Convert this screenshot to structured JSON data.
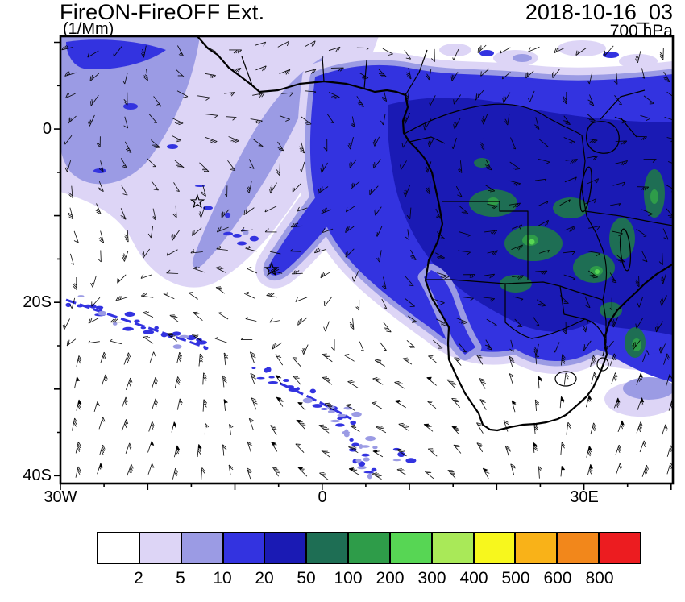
{
  "header": {
    "title": "FireON-FireOFF Ext.",
    "units": "(1/Mm)",
    "datetime": "2018-10-16_03",
    "level": "700 hPa"
  },
  "axes": {
    "y_ticks": [
      "0",
      "20S",
      "40S"
    ],
    "x_ticks": [
      "30W",
      "0",
      "30E"
    ]
  },
  "colorbar": {
    "labels": [
      "2",
      "5",
      "10",
      "20",
      "50",
      "100",
      "200",
      "300",
      "400",
      "500",
      "600",
      "800"
    ],
    "colors": [
      "#FFFFFF",
      "#DDD5F6",
      "#9B9BE4",
      "#3333E0",
      "#1A1AB4",
      "#1E6E54",
      "#2E9C49",
      "#57D654",
      "#A9E958",
      "#F7F71D",
      "#F9B218",
      "#F2871B",
      "#EC1C20"
    ]
  },
  "chart_data": {
    "type": "heatmap",
    "title": "FireON-FireOFF Ext.",
    "field": "Aerosol extinction coefficient difference (FireON minus FireOFF)",
    "units": "1/Mm",
    "pressure_level_hPa": 700,
    "datetime": "2018-10-16_03",
    "extent": {
      "lon": [
        -30,
        40.2
      ],
      "lat": [
        10.7,
        -40.9
      ]
    },
    "contour_levels": [
      2,
      5,
      10,
      20,
      50,
      100,
      200,
      300,
      400,
      500,
      600,
      800
    ],
    "legend_position": "bottom",
    "grid": false,
    "overlays": [
      "700 hPa wind barbs across whole domain",
      "African coastline",
      "country borders",
      "lakes"
    ],
    "markers": [
      {
        "type": "star",
        "lon": -14.3,
        "lat": -8.4
      },
      {
        "type": "star",
        "lon": -5.8,
        "lat": -16.2
      }
    ],
    "features": [
      {
        "region": "southeast Atlantic and central-southern Africa, ~0 to 24S, 5W to 40E",
        "value_range_per_Mm": "20-50",
        "color": "dark blue plume"
      },
      {
        "region": "interior patches over Angola, DRC, Zambia, Zimbabwe and east coast",
        "value_range_per_Mm": "50-300",
        "color": "greens"
      },
      {
        "region": "band sweeping from northwest corner toward plume tail near 5W, 16S",
        "value_range_per_Mm": "2-10",
        "color": "lavender / periwinkle"
      },
      {
        "region": "scattered frontal speckles 25W-5W, 20S-35S",
        "value_range_per_Mm": "10-20",
        "color": "blue specks"
      },
      {
        "region": "coastal strip Mozambique / KwaZulu-Natal",
        "value_range_per_Mm": "10-50",
        "color": "blue with lavender fringe"
      }
    ]
  }
}
